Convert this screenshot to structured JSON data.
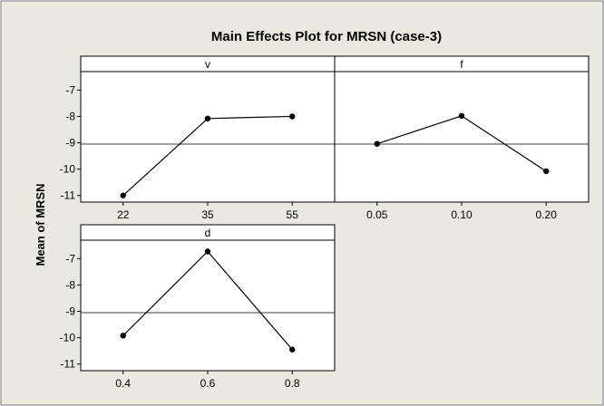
{
  "chart_data": {
    "type": "line",
    "title": "Main Effects Plot for MRSN (case-3)",
    "ylabel": "Mean of MRSN",
    "ylim": [
      -11.25,
      -6.3
    ],
    "yticks": [
      -7,
      -8,
      -9,
      -10,
      -11
    ],
    "reference_line": -9.05,
    "colors": {
      "outer_background": "#e9e9e0",
      "panel_background": "#ffffff",
      "line": "#000000"
    },
    "panels": [
      {
        "label": "v",
        "categories": [
          "22",
          "35",
          "55"
        ],
        "values": [
          -11.0,
          -8.08,
          -8.0
        ]
      },
      {
        "label": "f",
        "categories": [
          "0.05",
          "0.10",
          "0.20"
        ],
        "values": [
          -9.04,
          -7.98,
          -10.08
        ]
      },
      {
        "label": "d",
        "categories": [
          "0.4",
          "0.6",
          "0.8"
        ],
        "values": [
          -9.92,
          -6.73,
          -10.45
        ]
      }
    ]
  }
}
